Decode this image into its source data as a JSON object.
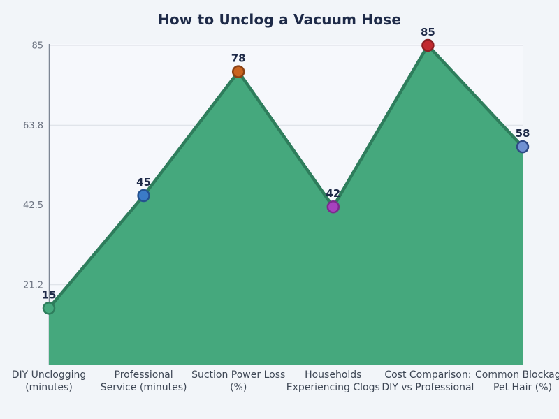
{
  "chart_data": {
    "type": "area",
    "title": "How to Unclog a Vacuum Hose",
    "categories": [
      "DIY Unclogging (minutes)",
      "Professional Service (minutes)",
      "Suction Power Loss (%)",
      "Households Experiencing Clogs",
      "Cost Comparison: DIY vs Professional",
      "Common Blockage: Pet Hair (%)"
    ],
    "category_lines": [
      [
        "DIY Unclogging",
        "(minutes)"
      ],
      [
        "Professional",
        "Service (minutes)"
      ],
      [
        "Suction Power Loss",
        "(%)"
      ],
      [
        "Households",
        "Experiencing Clogs"
      ],
      [
        "Cost Comparison:",
        "DIY vs Professional"
      ],
      [
        "Common Blockage:",
        "Pet Hair (%)"
      ]
    ],
    "values": [
      15,
      45,
      78,
      42,
      85,
      58
    ],
    "value_labels": [
      "15",
      "45",
      "78",
      "42",
      "85",
      "58"
    ],
    "ylim": [
      0,
      85
    ],
    "yticks": [
      {
        "value": 21.25,
        "label": "21.2"
      },
      {
        "value": 42.5,
        "label": "42.5"
      },
      {
        "value": 63.75,
        "label": "63.8"
      },
      {
        "value": 85,
        "label": "85"
      }
    ],
    "grid": true,
    "legend": false,
    "xlabel": "",
    "ylabel": "",
    "colors": {
      "page_bg": "#f2f5f9",
      "plot_bg": "#f6f8fc",
      "grid": "#d9dde4",
      "spine": "#7d8694",
      "area_fill": "#45a87d",
      "line": "#2e7d5c",
      "title_text": "#1e2a48",
      "value_text": "#1e2a48",
      "ytick_text": "#6b7280",
      "xlabel_text": "#3d4654",
      "marker_fills": [
        "#46a97e",
        "#3b7bc7",
        "#c96420",
        "#a742bf",
        "#c22a30",
        "#7091d2"
      ],
      "marker_strokes": [
        "#2e7d5c",
        "#24518f",
        "#8c4214",
        "#7a2c8c",
        "#8c1f24",
        "#2f4a85"
      ]
    }
  }
}
